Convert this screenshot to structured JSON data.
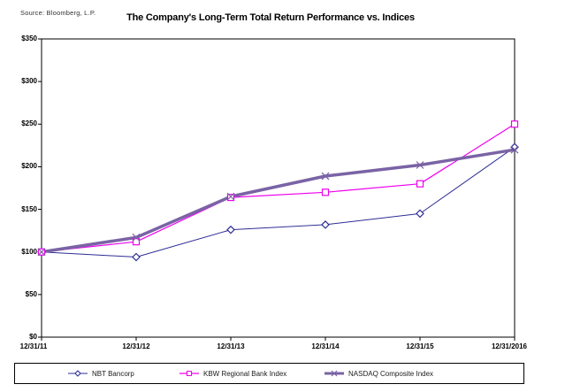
{
  "header": {
    "source": "Source:  Bloomberg,  L.P.",
    "title": "The Company's Long-Term Total Return Performance vs. Indices"
  },
  "chart_data": {
    "type": "line",
    "title": "The Company's Long-Term Total Return Performance vs. Indices",
    "categories": [
      "12/31/11",
      "12/31/12",
      "12/31/13",
      "12/31/14",
      "12/31/15",
      "12/31/2016"
    ],
    "series": [
      {
        "name": "NBT Bancorp",
        "color": "#2d2d96",
        "marker": "diamond",
        "line_width": 1,
        "values": [
          100,
          94,
          126,
          132,
          145,
          223
        ]
      },
      {
        "name": "KBW Regional Bank Index",
        "color": "#ee00ee",
        "marker": "square",
        "line_width": 1.2,
        "values": [
          100,
          112,
          164,
          170,
          180,
          250
        ]
      },
      {
        "name": "NASDAQ Composite Index",
        "color": "#7a63a5",
        "marker": "x",
        "line_width": 3.5,
        "values": [
          100,
          117,
          165,
          189,
          202,
          220
        ]
      }
    ],
    "y_axis": {
      "min": 0,
      "max": 350,
      "tick_step": 50,
      "tick_labels": [
        "$0",
        "$50",
        "$100",
        "$150",
        "$200",
        "$250",
        "$300",
        "$350"
      ]
    },
    "x_axis_label": "",
    "y_axis_label": "",
    "grid": false,
    "legend_position": "bottom",
    "axis_color": "#000000",
    "background_color": "#ffffff"
  }
}
